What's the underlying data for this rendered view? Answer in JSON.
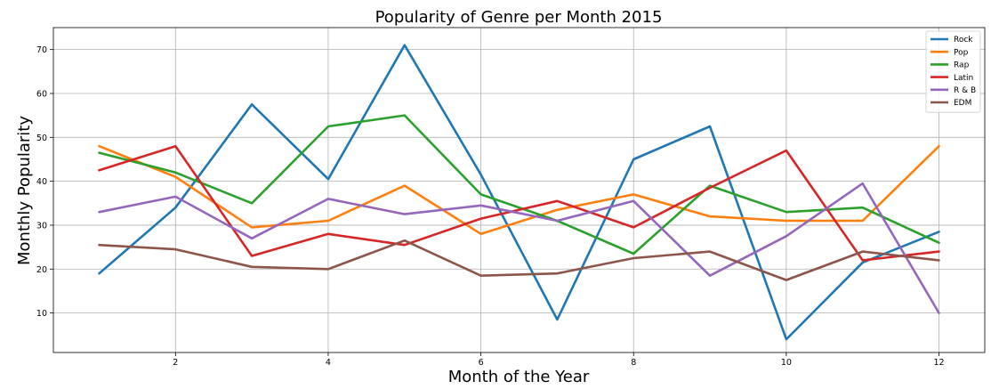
{
  "chart_data": {
    "type": "line",
    "title": "Popularity of Genre per Month 2015",
    "xlabel": "Month of the Year",
    "ylabel": "Monthly Popularity",
    "xlim": [
      0.4,
      12.6
    ],
    "ylim": [
      1,
      75
    ],
    "xticks": [
      2,
      4,
      6,
      8,
      10,
      12
    ],
    "yticks": [
      10,
      20,
      30,
      40,
      50,
      60,
      70
    ],
    "grid": true,
    "legend_position": "top-right",
    "x": [
      1,
      2,
      3,
      4,
      5,
      6,
      7,
      8,
      9,
      10,
      11,
      12
    ],
    "series": [
      {
        "name": "Rock",
        "color": "#1f77b4",
        "values": [
          19,
          34,
          57.5,
          40.5,
          71,
          41.5,
          8.5,
          45,
          52.5,
          4,
          21.5,
          28.5
        ]
      },
      {
        "name": "Pop",
        "color": "#ff7f0e",
        "values": [
          48,
          41,
          29.5,
          31,
          39,
          28,
          33.5,
          37,
          32,
          31,
          31,
          48
        ]
      },
      {
        "name": "Rap",
        "color": "#2ca02c",
        "values": [
          46.5,
          42,
          35,
          52.5,
          55,
          37,
          31,
          23.5,
          39,
          33,
          34,
          26
        ]
      },
      {
        "name": "Latin",
        "color": "#d62728",
        "values": [
          42.5,
          48,
          23,
          28,
          25.5,
          31.5,
          35.5,
          29.5,
          38.5,
          47,
          22,
          24
        ]
      },
      {
        "name": "R & B",
        "color": "#9467bd",
        "values": [
          33,
          36.5,
          27,
          36,
          32.5,
          34.5,
          31,
          35.5,
          18.5,
          27.5,
          39.5,
          10
        ]
      },
      {
        "name": "EDM",
        "color": "#8c564b",
        "values": [
          25.5,
          24.5,
          20.5,
          20,
          26.5,
          18.5,
          19,
          22.5,
          24,
          17.5,
          24,
          22
        ]
      }
    ]
  }
}
